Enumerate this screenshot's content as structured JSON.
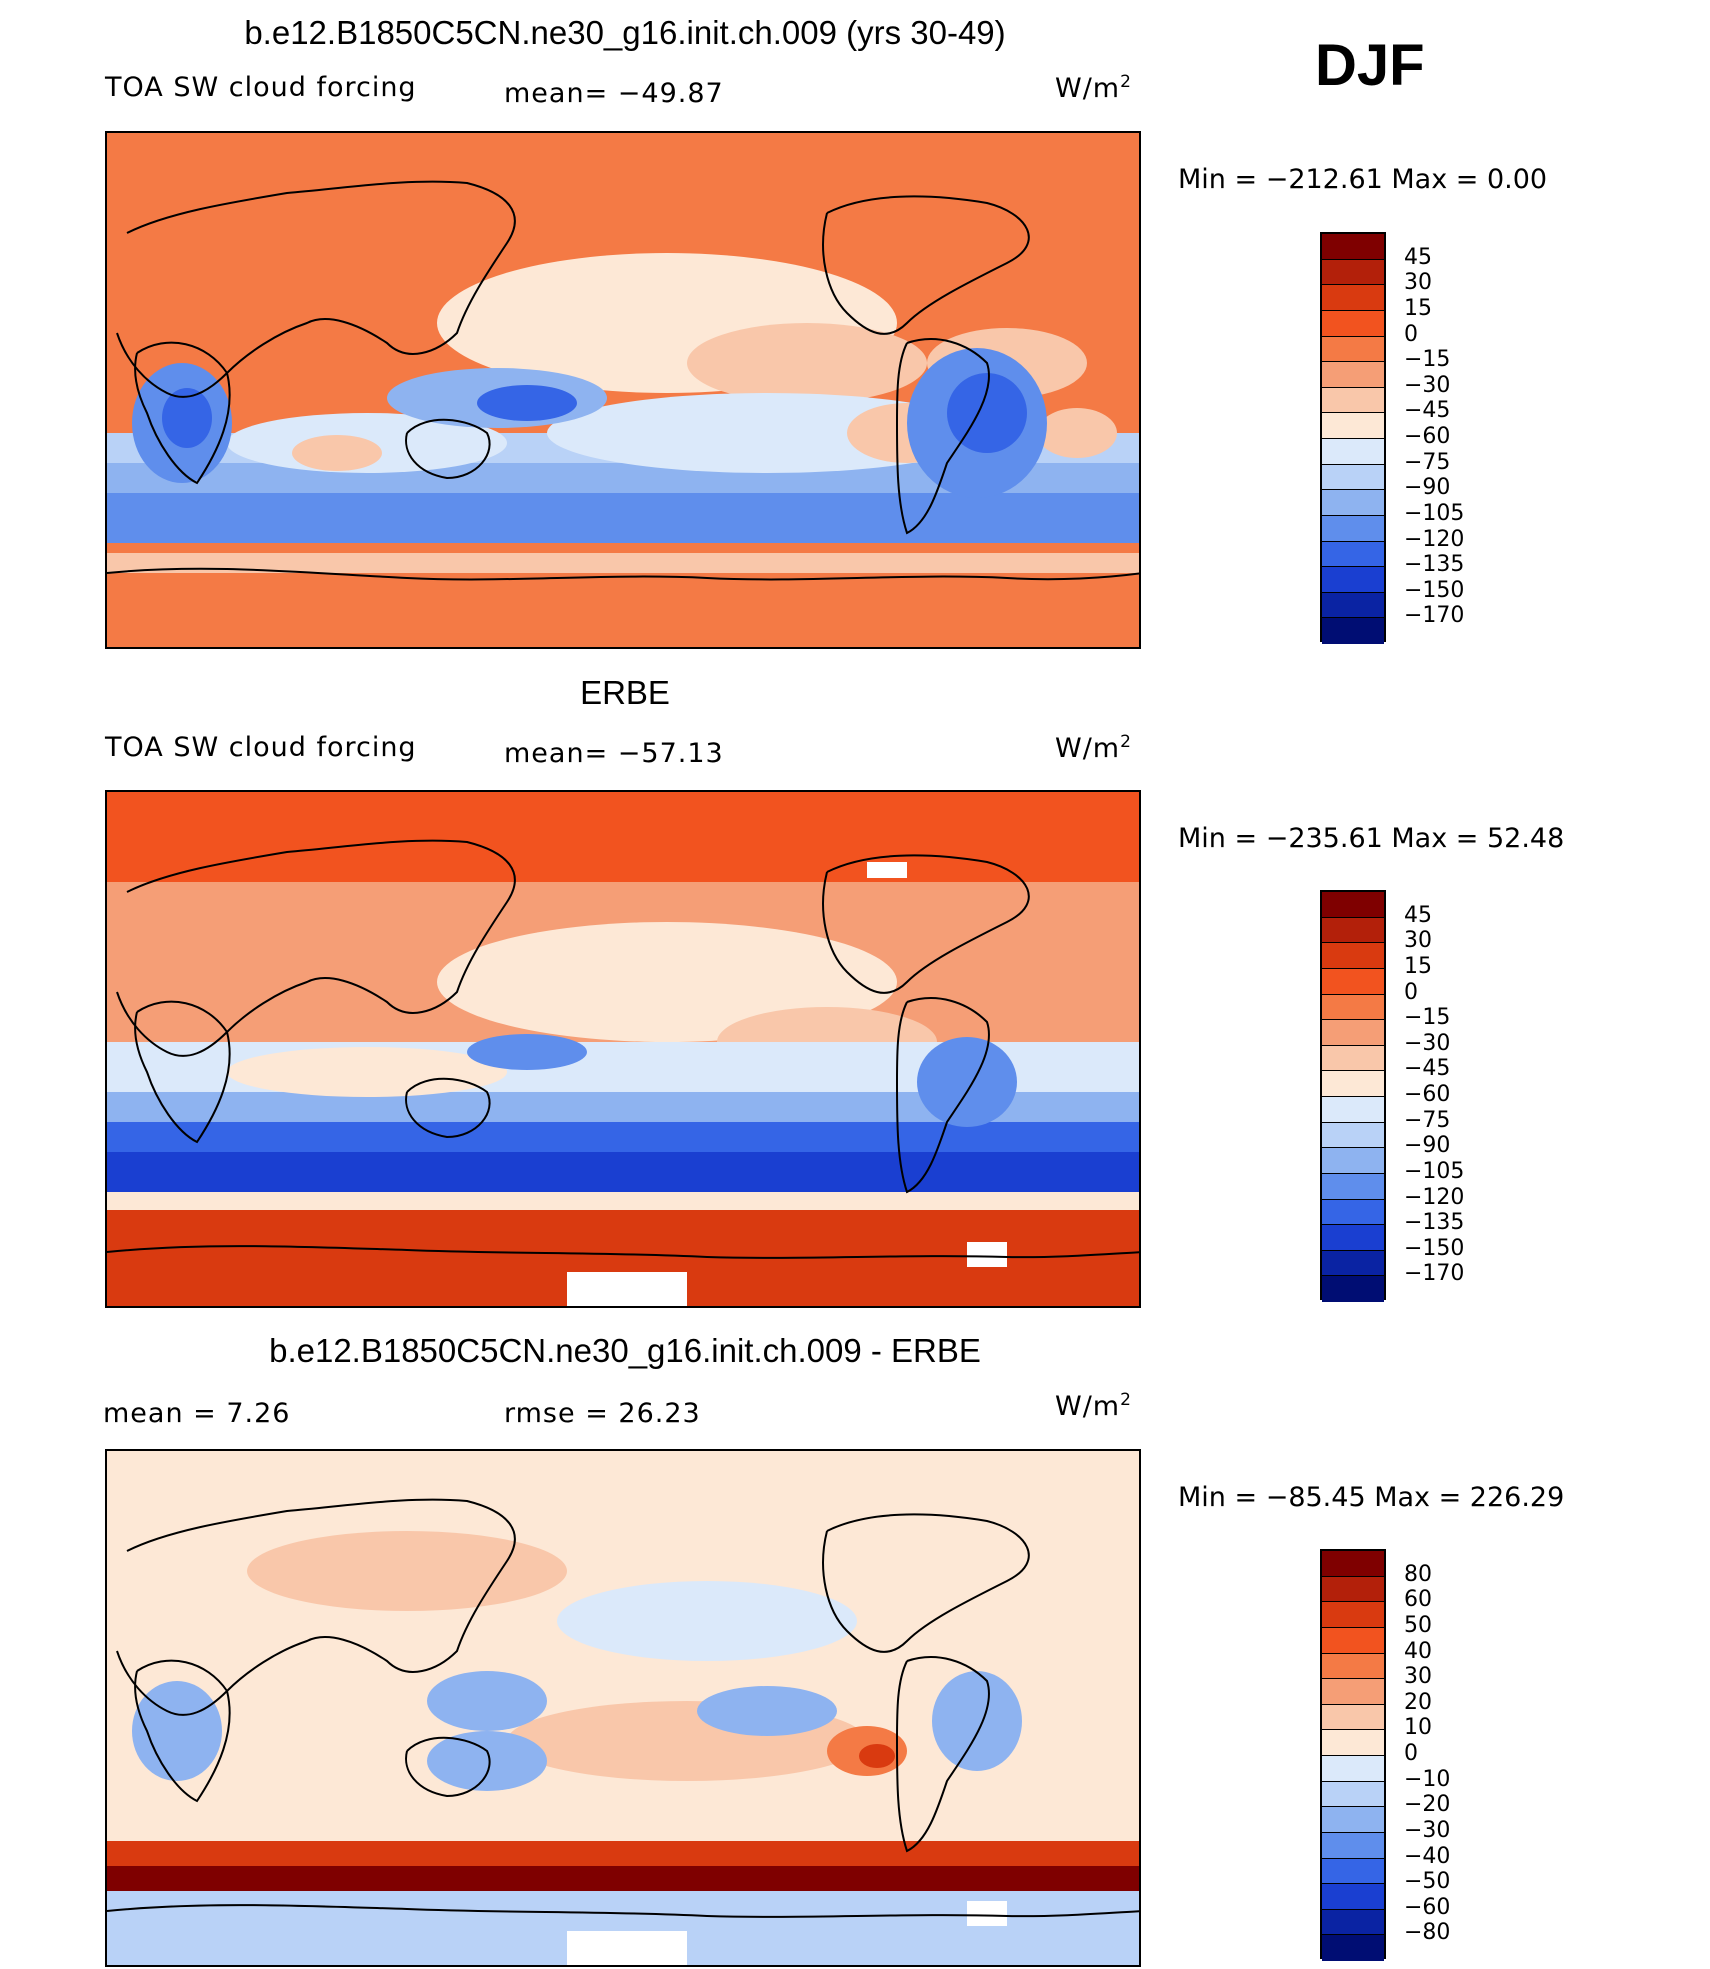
{
  "season": "DJF",
  "unit_main": "W/m",
  "unit_sup": "2",
  "panels": [
    {
      "title": "b.e12.B1850C5CN.ne30_g16.init.ch.009 (yrs 30-49)",
      "left_label": "TOA SW cloud forcing",
      "mid_label": "mean= −49.87",
      "stats": "Min = −212.61 Max = 0.00"
    },
    {
      "title": "ERBE",
      "left_label": "TOA SW cloud forcing",
      "mid_label": "mean= −57.13",
      "stats": "Min = −235.61 Max = 52.48"
    },
    {
      "title": "b.e12.B1850C5CN.ne30_g16.init.ch.009 - ERBE",
      "left_label": "mean = 7.26",
      "mid_label": "rmse = 26.23",
      "stats": "Min = −85.45 Max = 226.29"
    }
  ],
  "colorbar_field": {
    "labels": [
      "45",
      "30",
      "15",
      "0",
      "−15",
      "−30",
      "−45",
      "−60",
      "−75",
      "−90",
      "−105",
      "−120",
      "−135",
      "−150",
      "−170"
    ],
    "colors": [
      "#7f0000",
      "#b3200a",
      "#d93a10",
      "#f2531f",
      "#f47a45",
      "#f59e76",
      "#f9c7aa",
      "#fde8d6",
      "#dbe9fa",
      "#b9d2f7",
      "#8eb3f0",
      "#5f8eec",
      "#3565e6",
      "#1a3fd1",
      "#0a23a3",
      "#000d73"
    ]
  },
  "colorbar_diff": {
    "labels": [
      "80",
      "60",
      "50",
      "40",
      "30",
      "20",
      "10",
      "0",
      "−10",
      "−20",
      "−30",
      "−40",
      "−50",
      "−60",
      "−80"
    ],
    "colors": [
      "#7f0000",
      "#b3200a",
      "#d93a10",
      "#f2531f",
      "#f47a45",
      "#f59e76",
      "#f9c7aa",
      "#fde8d6",
      "#dbe9fa",
      "#b9d2f7",
      "#8eb3f0",
      "#5f8eec",
      "#3565e6",
      "#1a3fd1",
      "#0a23a3",
      "#000d73"
    ]
  },
  "chart_data": [
    {
      "type": "heatmap",
      "title": "b.e12.B1850C5CN.ne30_g16.init.ch.009 (yrs 30-49)",
      "variable": "TOA SW cloud forcing",
      "units": "W/m2",
      "mean": -49.87,
      "min": -212.61,
      "max": 0.0,
      "contour_levels": [
        -170,
        -150,
        -135,
        -120,
        -105,
        -90,
        -75,
        -60,
        -45,
        -30,
        -15,
        0,
        15,
        30,
        45
      ]
    },
    {
      "type": "heatmap",
      "title": "ERBE",
      "variable": "TOA SW cloud forcing",
      "units": "W/m2",
      "mean": -57.13,
      "min": -235.61,
      "max": 52.48,
      "contour_levels": [
        -170,
        -150,
        -135,
        -120,
        -105,
        -90,
        -75,
        -60,
        -45,
        -30,
        -15,
        0,
        15,
        30,
        45
      ]
    },
    {
      "type": "heatmap",
      "title": "b.e12.B1850C5CN.ne30_g16.init.ch.009 - ERBE",
      "units": "W/m2",
      "mean": 7.26,
      "rmse": 26.23,
      "min": -85.45,
      "max": 226.29,
      "contour_levels": [
        -80,
        -60,
        -50,
        -40,
        -30,
        -20,
        -10,
        0,
        10,
        20,
        30,
        40,
        50,
        60,
        80
      ]
    }
  ]
}
